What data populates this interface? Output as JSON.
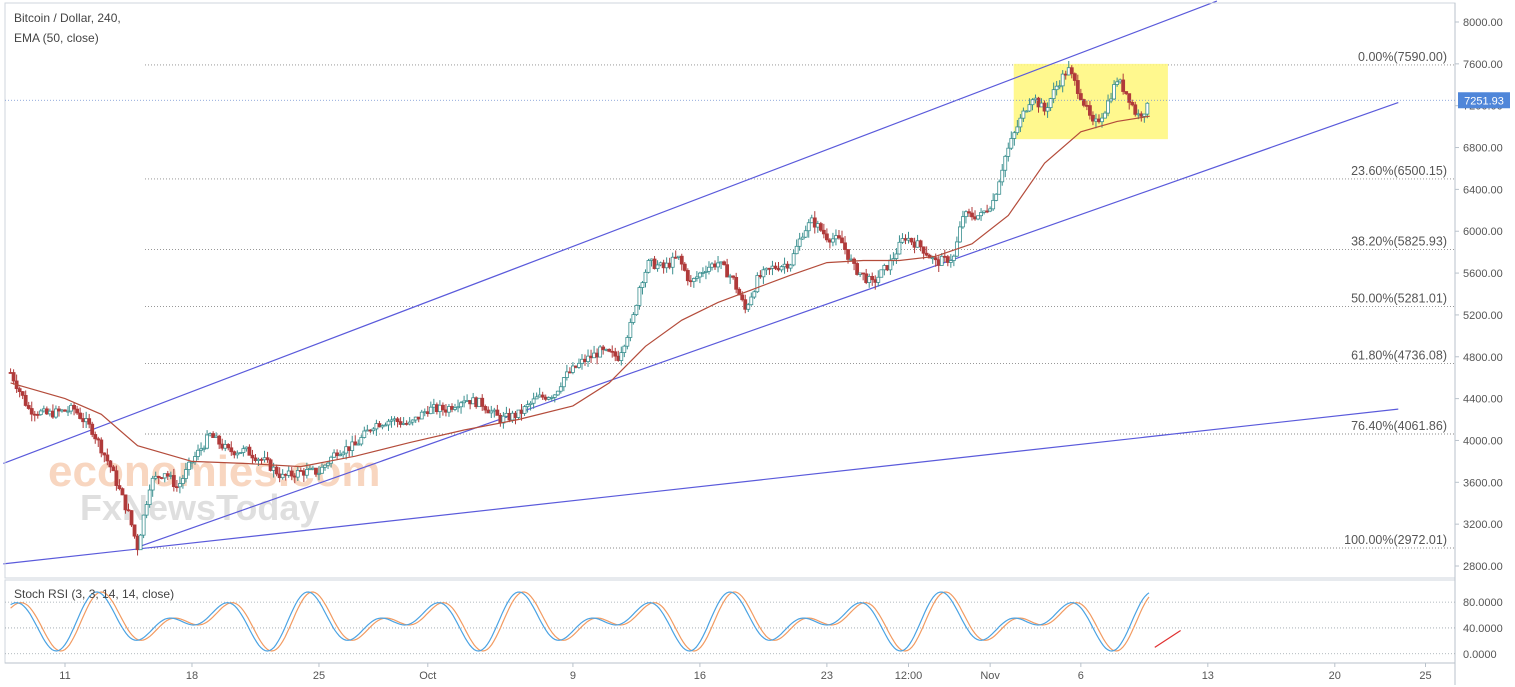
{
  "chart_data": {
    "type": "candlestick",
    "title": "Bitcoin / Dollar, 240,",
    "indicator_label": "EMA (50, close)",
    "y_ticks": [
      "8000.00",
      "7600.00",
      "7200.00",
      "6800.00",
      "6400.00",
      "6000.00",
      "5600.00",
      "5200.00",
      "4800.00",
      "4400.00",
      "4000.00",
      "3600.00",
      "3200.00",
      "2800.00"
    ],
    "y_range": [
      2700,
      8200
    ],
    "current_price": "7251.93",
    "current_price_value": 7251.93,
    "x_ticks": [
      {
        "label": "11",
        "day": 11
      },
      {
        "label": "18",
        "day": 18
      },
      {
        "label": "25",
        "day": 25
      },
      {
        "label": "Oct",
        "day": 31
      },
      {
        "label": "9",
        "day": 39
      },
      {
        "label": "16",
        "day": 46
      },
      {
        "label": "23",
        "day": 53
      },
      {
        "label": "12:00",
        "day": 57.5
      },
      {
        "label": "Nov",
        "day": 62
      },
      {
        "label": "6",
        "day": 67
      },
      {
        "label": "13",
        "day": 74
      },
      {
        "label": "20",
        "day": 81
      },
      {
        "label": "25",
        "day": 86
      }
    ],
    "fibonacci_levels": [
      {
        "label": "0.00%(7590.00)",
        "price": 7590.0
      },
      {
        "label": "23.60%(6500.15)",
        "price": 6500.15
      },
      {
        "label": "38.20%(5825.93)",
        "price": 5825.93
      },
      {
        "label": "50.00%(5281.01)",
        "price": 5281.01
      },
      {
        "label": "61.80%(4736.08)",
        "price": 4736.08
      },
      {
        "label": "76.40%(4061.86)",
        "price": 4061.86
      },
      {
        "label": "100.00%(2972.01)",
        "price": 2972.01
      }
    ],
    "price_path": [
      {
        "day": 8,
        "price": 4650
      },
      {
        "day": 9,
        "price": 4300
      },
      {
        "day": 10,
        "price": 4250
      },
      {
        "day": 11.5,
        "price": 4300
      },
      {
        "day": 12.5,
        "price": 4100
      },
      {
        "day": 13.5,
        "price": 3750
      },
      {
        "day": 14.5,
        "price": 3300
      },
      {
        "day": 15,
        "price": 2980
      },
      {
        "day": 15.7,
        "price": 3600
      },
      {
        "day": 16.5,
        "price": 3700
      },
      {
        "day": 17.2,
        "price": 3550
      },
      {
        "day": 18,
        "price": 3800
      },
      {
        "day": 19,
        "price": 4050
      },
      {
        "day": 20,
        "price": 3900
      },
      {
        "day": 21,
        "price": 3900
      },
      {
        "day": 22,
        "price": 3800
      },
      {
        "day": 23,
        "price": 3650
      },
      {
        "day": 24,
        "price": 3700
      },
      {
        "day": 25,
        "price": 3700
      },
      {
        "day": 26,
        "price": 3900
      },
      {
        "day": 27,
        "price": 3950
      },
      {
        "day": 28,
        "price": 4150
      },
      {
        "day": 29,
        "price": 4200
      },
      {
        "day": 30,
        "price": 4150
      },
      {
        "day": 31,
        "price": 4300
      },
      {
        "day": 32,
        "price": 4300
      },
      {
        "day": 33,
        "price": 4400
      },
      {
        "day": 34,
        "price": 4350
      },
      {
        "day": 35,
        "price": 4200
      },
      {
        "day": 36,
        "price": 4250
      },
      {
        "day": 37,
        "price": 4400
      },
      {
        "day": 38,
        "price": 4450
      },
      {
        "day": 38.5,
        "price": 4600
      },
      {
        "day": 39.5,
        "price": 4750
      },
      {
        "day": 40.5,
        "price": 4850
      },
      {
        "day": 41.5,
        "price": 4800
      },
      {
        "day": 42.3,
        "price": 5150
      },
      {
        "day": 42.7,
        "price": 5500
      },
      {
        "day": 43.2,
        "price": 5700
      },
      {
        "day": 44,
        "price": 5650
      },
      {
        "day": 44.8,
        "price": 5750
      },
      {
        "day": 45.5,
        "price": 5500
      },
      {
        "day": 46.3,
        "price": 5650
      },
      {
        "day": 47,
        "price": 5700
      },
      {
        "day": 47.8,
        "price": 5550
      },
      {
        "day": 48.5,
        "price": 5250
      },
      {
        "day": 49.2,
        "price": 5550
      },
      {
        "day": 50,
        "price": 5650
      },
      {
        "day": 51,
        "price": 5700
      },
      {
        "day": 51.7,
        "price": 6000
      },
      {
        "day": 52.2,
        "price": 6100
      },
      {
        "day": 53,
        "price": 5950
      },
      {
        "day": 53.8,
        "price": 5900
      },
      {
        "day": 54.5,
        "price": 5650
      },
      {
        "day": 55.5,
        "price": 5500
      },
      {
        "day": 56.5,
        "price": 5700
      },
      {
        "day": 57.3,
        "price": 5950
      },
      {
        "day": 58.2,
        "price": 5850
      },
      {
        "day": 59,
        "price": 5700
      },
      {
        "day": 60,
        "price": 5750
      },
      {
        "day": 60.5,
        "price": 6150
      },
      {
        "day": 61.5,
        "price": 6150
      },
      {
        "day": 62.2,
        "price": 6300
      },
      {
        "day": 62.8,
        "price": 6700
      },
      {
        "day": 63.5,
        "price": 7000
      },
      {
        "day": 64.3,
        "price": 7300
      },
      {
        "day": 65,
        "price": 7150
      },
      {
        "day": 65.7,
        "price": 7400
      },
      {
        "day": 66.3,
        "price": 7550
      },
      {
        "day": 67,
        "price": 7300
      },
      {
        "day": 67.7,
        "price": 7000
      },
      {
        "day": 68.3,
        "price": 7150
      },
      {
        "day": 69,
        "price": 7450
      },
      {
        "day": 69.6,
        "price": 7300
      },
      {
        "day": 70.1,
        "price": 7100
      },
      {
        "day": 70.8,
        "price": 7200
      }
    ],
    "ema_path": [
      {
        "day": 8,
        "price": 4550
      },
      {
        "day": 11,
        "price": 4400
      },
      {
        "day": 13,
        "price": 4250
      },
      {
        "day": 15,
        "price": 3950
      },
      {
        "day": 18,
        "price": 3800
      },
      {
        "day": 21,
        "price": 3780
      },
      {
        "day": 24,
        "price": 3750
      },
      {
        "day": 27,
        "price": 3850
      },
      {
        "day": 30,
        "price": 3980
      },
      {
        "day": 33,
        "price": 4100
      },
      {
        "day": 36,
        "price": 4200
      },
      {
        "day": 39,
        "price": 4330
      },
      {
        "day": 41,
        "price": 4550
      },
      {
        "day": 43,
        "price": 4900
      },
      {
        "day": 45,
        "price": 5150
      },
      {
        "day": 47,
        "price": 5320
      },
      {
        "day": 49,
        "price": 5450
      },
      {
        "day": 51,
        "price": 5580
      },
      {
        "day": 53,
        "price": 5700
      },
      {
        "day": 55,
        "price": 5720
      },
      {
        "day": 57,
        "price": 5720
      },
      {
        "day": 59,
        "price": 5760
      },
      {
        "day": 61,
        "price": 5880
      },
      {
        "day": 63,
        "price": 6150
      },
      {
        "day": 65,
        "price": 6650
      },
      {
        "day": 67,
        "price": 6950
      },
      {
        "day": 69,
        "price": 7050
      },
      {
        "day": 70.8,
        "price": 7100
      }
    ],
    "channel_lines": [
      {
        "from": {
          "day": 7.6,
          "price": 3780
        },
        "to": {
          "day": 74.5,
          "price": 8200
        }
      },
      {
        "from": {
          "day": 15,
          "price": 2980
        },
        "to": {
          "day": 84.5,
          "price": 7230
        }
      },
      {
        "from": {
          "day": 7.6,
          "price": 2820
        },
        "to": {
          "day": 84.5,
          "price": 4300
        }
      }
    ],
    "highlight_box": {
      "day_from": 63.3,
      "day_to": 71.8,
      "price_from": 6880,
      "price_to": 7600,
      "color": "#fff77a"
    },
    "stoch_rsi": {
      "label": "Stoch RSI (3, 3, 14, 14, close)",
      "y_ticks": [
        "80.0000",
        "40.0000",
        "0.0000"
      ],
      "y_range": [
        -5,
        105
      ],
      "k_color": "#4ba3e3",
      "d_color": "#f29b62"
    },
    "colors": {
      "up": "#3a8f8f",
      "down": "#b03a3a",
      "ema": "#b44c3b",
      "channel": "#5a5adb",
      "fib": "#8a8a8a"
    }
  },
  "watermark": {
    "line1": "economies.com",
    "line2": "FxNewsToday"
  }
}
